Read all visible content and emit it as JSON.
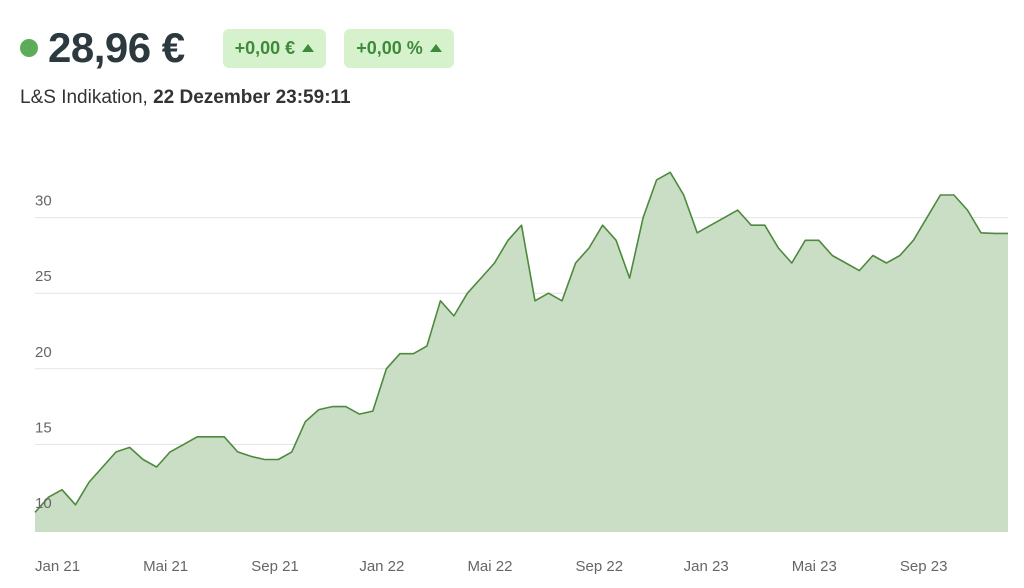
{
  "header": {
    "price": "28,96 €",
    "change_abs": "+0,00 €",
    "change_pct": "+0,00 %",
    "source": "L&S Indikation,",
    "timestamp": "22 Dezember 23:59:11"
  },
  "chart_data": {
    "type": "area",
    "categories": [
      "Jan 21",
      null,
      null,
      null,
      null,
      null,
      null,
      null,
      "Mai 21",
      null,
      null,
      null,
      null,
      null,
      null,
      null,
      "Sep 21",
      null,
      null,
      null,
      null,
      null,
      null,
      null,
      "Jan 22",
      null,
      null,
      null,
      null,
      null,
      null,
      null,
      "Mai 22",
      null,
      null,
      null,
      null,
      null,
      null,
      null,
      "Sep 22",
      null,
      null,
      null,
      null,
      null,
      null,
      null,
      "Jan 23",
      null,
      null,
      null,
      null,
      null,
      null,
      null,
      "Mai 23",
      null,
      null,
      null,
      null,
      null,
      null,
      null,
      "Sep 23",
      null,
      null,
      null,
      null,
      null,
      null,
      null
    ],
    "values": [
      10.5,
      11.5,
      12,
      11,
      12.5,
      13.5,
      14.5,
      14.8,
      14,
      13.5,
      14.5,
      15,
      15.5,
      15.5,
      15.5,
      14.5,
      14.2,
      14,
      14,
      14.5,
      16.5,
      17.3,
      17.5,
      17.5,
      17,
      17.2,
      20,
      21,
      21,
      21.5,
      24.5,
      23.5,
      25,
      26,
      27,
      28.5,
      29.5,
      24.5,
      25,
      24.5,
      27,
      28,
      29.5,
      28.5,
      26,
      30,
      32.5,
      33,
      31.5,
      29,
      29.5,
      30,
      30.5,
      29.5,
      29.5,
      28,
      27,
      28.5,
      28.5,
      27.5,
      27,
      26.5,
      27.5,
      27,
      27.5,
      28.5,
      30,
      31.5,
      31.5,
      30.5,
      29,
      28.96
    ],
    "color": "#4e8a3e",
    "fill_color": "#c9dec4",
    "ylim": [
      9.2,
      36
    ],
    "yticks": [
      10,
      15,
      20,
      25,
      30
    ],
    "grid": true
  }
}
